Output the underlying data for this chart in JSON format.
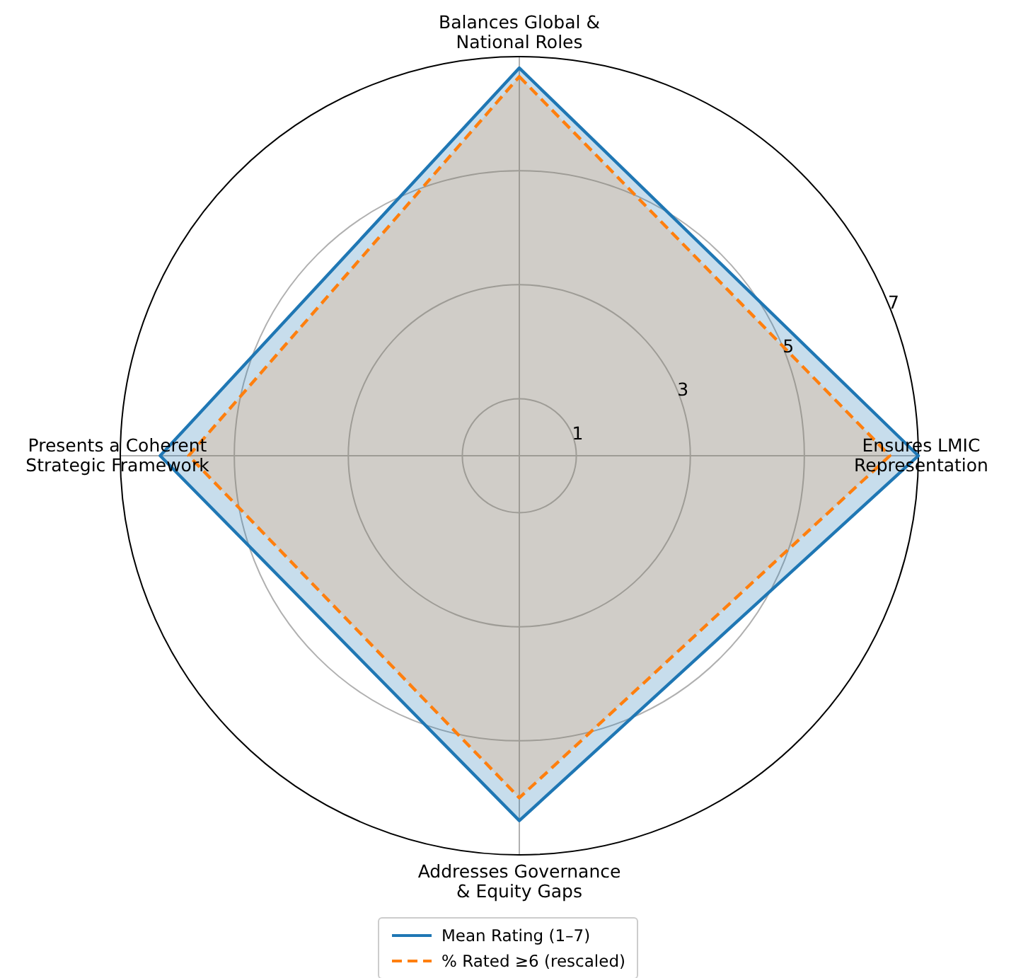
{
  "chart_data": {
    "type": "radar",
    "categories": [
      "Balances Global & National Roles",
      "Ensures LMIC Representation",
      "Addresses Governance & Equity Gaps",
      "Presents a Coherent Strategic Framework"
    ],
    "series": [
      {
        "name": "Mean Rating (1–7)",
        "color": "#1f77b4",
        "values": [
          6.8,
          7.0,
          6.4,
          6.3
        ],
        "line_style": "solid"
      },
      {
        "name": "% Rated ≥6 (rescaled)",
        "color": "#ff7f0e",
        "values": [
          6.65,
          6.5,
          6.0,
          5.8
        ],
        "line_style": "dashed"
      }
    ],
    "ylim": [
      0,
      7
    ],
    "yticks": [
      1,
      3,
      5,
      7
    ],
    "grid": true,
    "legend": "bottom",
    "marker": "none"
  }
}
